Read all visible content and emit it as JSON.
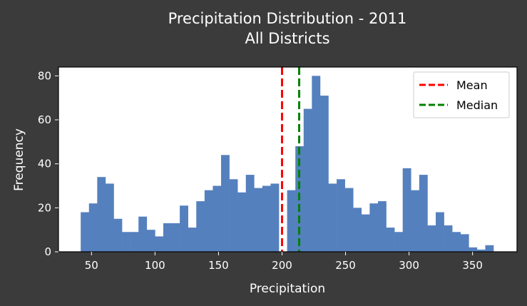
{
  "chart_data": {
    "type": "bar",
    "title": "Precipitation Distribution - 2011",
    "subtitle": "All Districts",
    "xlabel": "Precipitation",
    "ylabel": "Frequency",
    "xlim": [
      24,
      385
    ],
    "ylim": [
      0,
      84
    ],
    "xticks": [
      50,
      100,
      150,
      200,
      250,
      300,
      350
    ],
    "yticks": [
      0,
      20,
      40,
      60,
      80
    ],
    "bin_start": 41.5,
    "bin_width": 6.5,
    "values": [
      18,
      22,
      34,
      31,
      15,
      9,
      9,
      16,
      10,
      7,
      13,
      13,
      21,
      11,
      23,
      28,
      30,
      44,
      33,
      27,
      35,
      29,
      30,
      31,
      0,
      28,
      48,
      65,
      80,
      71,
      31,
      33,
      29,
      20,
      17,
      22,
      23,
      11,
      9,
      38,
      28,
      35,
      12,
      18,
      12,
      9,
      8,
      2,
      1,
      3
    ],
    "mean": 200,
    "median": 213.5,
    "bar_color": "#5580be",
    "mean_color": "#ff0000",
    "median_color": "#008000",
    "legend": [
      {
        "label": "Mean",
        "color": "#ff0000"
      },
      {
        "label": "Median",
        "color": "#008000"
      }
    ],
    "legend_position": "top-right",
    "grid": false
  }
}
